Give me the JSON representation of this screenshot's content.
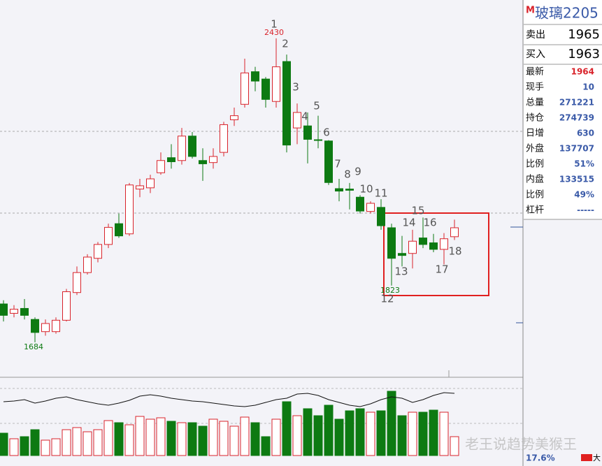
{
  "chart_data": {
    "type": "candlestick",
    "ylim": [
      1598,
      2524
    ],
    "up_color": "#d9232b",
    "down_color": "#0d7a12",
    "open": [
      1778,
      1755,
      1767,
      1740,
      1710,
      1710,
      1738,
      1806,
      1855,
      1890,
      1924,
      1975,
      1950,
      2060,
      2063,
      2100,
      2137,
      2130,
      2190,
      2130,
      2125,
      2150,
      2230,
      2268,
      2348,
      2330,
      2275,
      2373,
      2210,
      2215,
      2181,
      2178,
      2061,
      2060,
      2040,
      2005,
      2015,
      1965,
      1902,
      1902,
      1940,
      1928,
      1912,
      1943
    ],
    "high": [
      1787,
      1775,
      1790,
      1745,
      1740,
      1745,
      1815,
      1870,
      1900,
      1930,
      1975,
      2000,
      2075,
      2085,
      2095,
      2150,
      2170,
      2210,
      2200,
      2160,
      2160,
      2225,
      2260,
      2380,
      2360,
      2335,
      2430,
      2390,
      2270,
      2248,
      2240,
      2180,
      2085,
      2075,
      2045,
      2030,
      2035,
      1975,
      1945,
      1960,
      1990,
      1950,
      1952,
      1985
    ],
    "low": [
      1735,
      1745,
      1740,
      1684,
      1700,
      1705,
      1735,
      1800,
      1850,
      1880,
      1915,
      1940,
      1945,
      2040,
      2050,
      2095,
      2110,
      2120,
      2135,
      2080,
      2110,
      2140,
      2215,
      2260,
      2300,
      2260,
      2260,
      2150,
      2170,
      2123,
      2160,
      2070,
      2030,
      2010,
      2000,
      2000,
      1960,
      1823,
      1870,
      1865,
      1915,
      1905,
      1875,
      1935
    ],
    "close": [
      1750,
      1765,
      1750,
      1708,
      1730,
      1738,
      1808,
      1855,
      1893,
      1924,
      1966,
      1945,
      2070,
      2068,
      2085,
      2130,
      2127,
      2190,
      2140,
      2122,
      2140,
      2218,
      2240,
      2345,
      2325,
      2280,
      2360,
      2168,
      2248,
      2182,
      2180,
      2076,
      2055,
      2057,
      2006,
      2025,
      1970,
      1890,
      1897,
      1932,
      1924,
      1912,
      1938,
      1965
    ],
    "volume_ylim": [
      0,
      100
    ],
    "volume": [
      32,
      24,
      27,
      37,
      22,
      24,
      37,
      40,
      34,
      37,
      50,
      47,
      44,
      56,
      52,
      54,
      49,
      47,
      47,
      42,
      52,
      49,
      42,
      55,
      47,
      27,
      52,
      77,
      57,
      67,
      57,
      72,
      52,
      64,
      67,
      62,
      64,
      92,
      57,
      62,
      62,
      65,
      62,
      27
    ],
    "open_interest": [
      77,
      78,
      80,
      75,
      78,
      82,
      84,
      80,
      77,
      74,
      72,
      75,
      79,
      85,
      87,
      85,
      82,
      80,
      78,
      77,
      75,
      73,
      71,
      70,
      72,
      76,
      80,
      82,
      88,
      89,
      86,
      80,
      76,
      72,
      70,
      74,
      80,
      84,
      82,
      76,
      80,
      86,
      90,
      89
    ],
    "annotations": [
      "1",
      "2",
      "3",
      "4",
      "5",
      "6",
      "7",
      "8",
      "9",
      "10",
      "11",
      "12",
      "13",
      "14",
      "15",
      "16",
      "17",
      "18"
    ]
  },
  "quote_panel": {
    "badge": "M",
    "title": "玻璃2205",
    "ask_label": "卖出",
    "ask": 1965,
    "bid_label": "买入",
    "bid": 1963,
    "rows": [
      [
        "最新",
        1964
      ],
      [
        "现手",
        10
      ],
      [
        "总量",
        271221
      ],
      [
        "持仓",
        274739
      ],
      [
        "日增",
        630
      ],
      [
        "外盘",
        137707
      ],
      [
        "比例",
        "51%"
      ],
      [
        "内盘",
        133515
      ],
      [
        "比例",
        "49%"
      ],
      [
        "杠杆",
        "-----"
      ]
    ]
  },
  "footer": {
    "percent": "17.6%",
    "button": "大",
    "watermark": "老王说趋势美猴王"
  }
}
